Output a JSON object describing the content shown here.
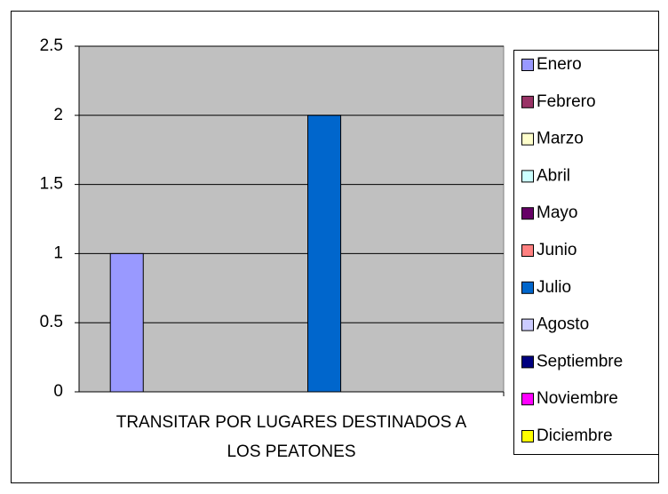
{
  "chart_data": {
    "type": "bar",
    "categories": [
      "TRANSITAR POR LUGARES DESTINADOS A LOS PEATONES"
    ],
    "series": [
      {
        "name": "Enero",
        "color": "#9999ff",
        "values": [
          1
        ]
      },
      {
        "name": "Febrero",
        "color": "#993366",
        "values": [
          0
        ]
      },
      {
        "name": "Marzo",
        "color": "#ffffcc",
        "values": [
          0
        ]
      },
      {
        "name": "Abril",
        "color": "#ccffff",
        "values": [
          0
        ]
      },
      {
        "name": "Mayo",
        "color": "#660066",
        "values": [
          0
        ]
      },
      {
        "name": "Junio",
        "color": "#ff8080",
        "values": [
          0
        ]
      },
      {
        "name": "Julio",
        "color": "#0066cc",
        "values": [
          2
        ]
      },
      {
        "name": "Agosto",
        "color": "#ccccff",
        "values": [
          0
        ]
      },
      {
        "name": "Septiembre",
        "color": "#000080",
        "values": [
          0
        ]
      },
      {
        "name": "Noviembre",
        "color": "#ff00ff",
        "values": [
          0
        ]
      },
      {
        "name": "Diciembre",
        "color": "#ffff00",
        "values": [
          0
        ]
      }
    ],
    "ylim": [
      0,
      2.5
    ],
    "yticks": [
      0,
      0.5,
      1,
      1.5,
      2,
      2.5
    ],
    "grid": true,
    "legend": "right"
  }
}
